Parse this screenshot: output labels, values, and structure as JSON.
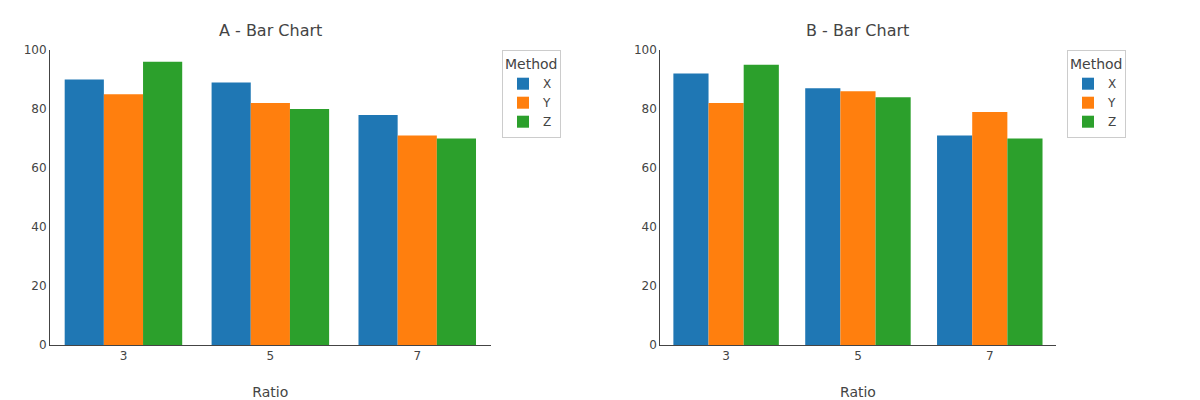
{
  "chart_data": [
    {
      "type": "bar",
      "title": "A - Bar Chart",
      "xlabel": "Ratio",
      "categories": [
        "3",
        "5",
        "7"
      ],
      "series": [
        {
          "name": "X",
          "color": "#1f77b4",
          "values": [
            90,
            89,
            78
          ]
        },
        {
          "name": "Y",
          "color": "#ff7f0e",
          "values": [
            85,
            82,
            71
          ]
        },
        {
          "name": "Z",
          "color": "#2ca02c",
          "values": [
            96,
            80,
            70
          ]
        }
      ],
      "legend_title": "Method",
      "legend": "right",
      "ylim": [
        0,
        100
      ],
      "yticks": [
        0,
        20,
        40,
        60,
        80,
        100
      ],
      "grid": false
    },
    {
      "type": "bar",
      "title": "B - Bar Chart",
      "xlabel": "Ratio",
      "categories": [
        "3",
        "5",
        "7"
      ],
      "series": [
        {
          "name": "X",
          "color": "#1f77b4",
          "values": [
            92,
            87,
            71
          ]
        },
        {
          "name": "Y",
          "color": "#ff7f0e",
          "values": [
            82,
            86,
            79
          ]
        },
        {
          "name": "Z",
          "color": "#2ca02c",
          "values": [
            95,
            84,
            70
          ]
        }
      ],
      "legend_title": "Method",
      "legend": "right",
      "ylim": [
        0,
        100
      ],
      "yticks": [
        0,
        20,
        40,
        60,
        80,
        100
      ],
      "grid": false
    }
  ]
}
